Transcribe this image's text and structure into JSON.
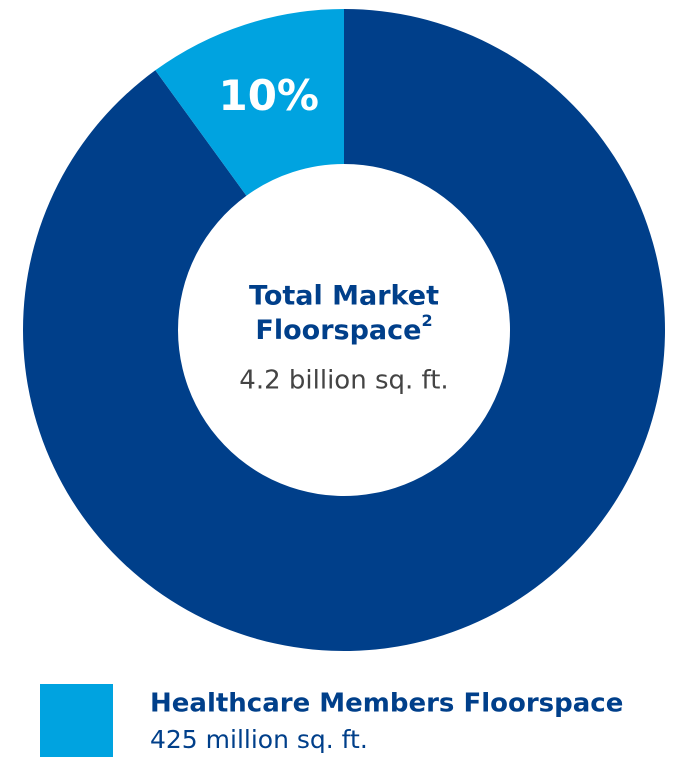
{
  "chart_data": {
    "type": "donut",
    "categories": [
      "Healthcare Members Floorspace",
      null
    ],
    "values": [
      10,
      90
    ],
    "value_labels": [
      "10%",
      null
    ],
    "colors": [
      "#00a3e0",
      "#003f8a"
    ],
    "category_notes": [
      "425 million sq. ft.",
      null
    ],
    "center_title": [
      "Total Market",
      "Floorspace"
    ],
    "center_title_footnote": "2",
    "center_subtitle": "4.2 billion sq. ft."
  }
}
